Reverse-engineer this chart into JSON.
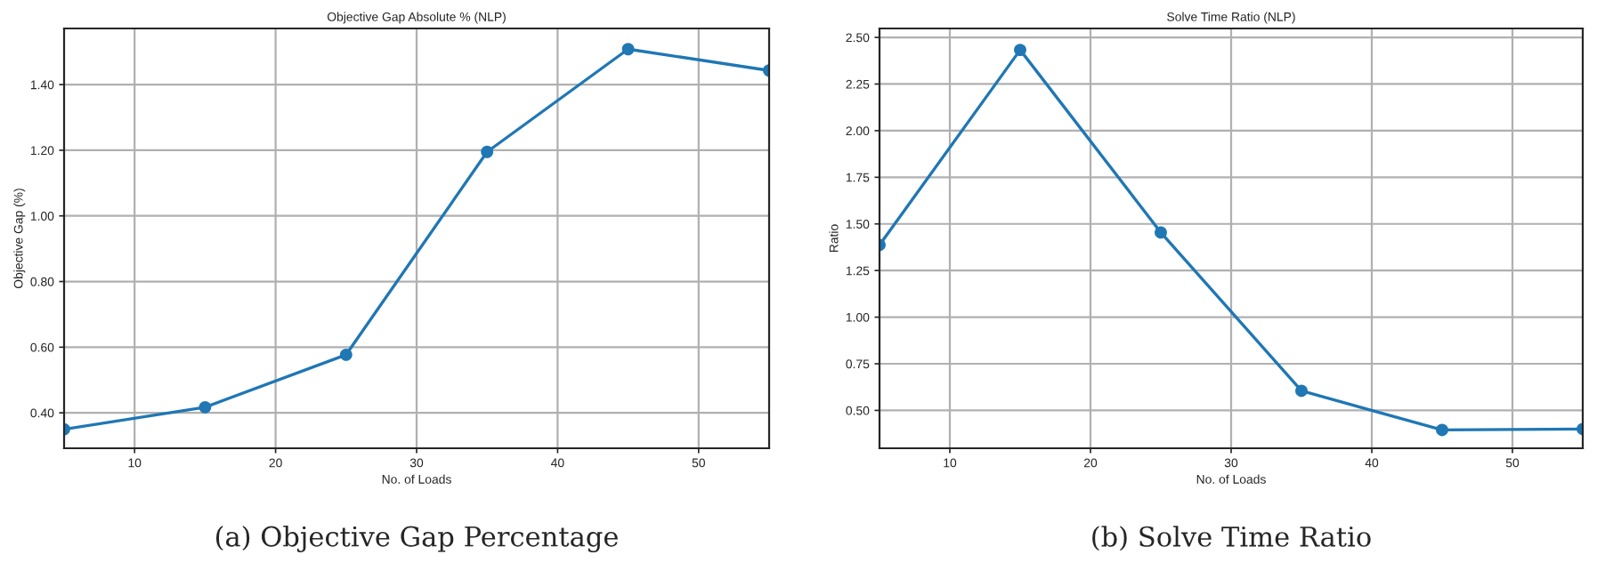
{
  "chart_data": [
    {
      "type": "line",
      "title": "Objective Gap Absolute % (NLP)",
      "xlabel": "No. of Loads",
      "ylabel": "Objective Gap (%)",
      "x": [
        5,
        15,
        25,
        35,
        45,
        55
      ],
      "series": [
        {
          "color": "#1f77b4",
          "values": [
            0.35,
            0.417,
            0.577,
            1.195,
            1.508,
            1.443
          ]
        }
      ],
      "xlim": [
        5,
        55
      ],
      "xticks": [
        10,
        20,
        30,
        40,
        50
      ],
      "ylim": [
        0.292,
        1.571
      ],
      "yticks": [
        {
          "value": 0.4,
          "label": "0.40"
        },
        {
          "value": 0.6,
          "label": "0.60"
        },
        {
          "value": 0.8,
          "label": "0.80"
        },
        {
          "value": 1.0,
          "label": "1.00"
        },
        {
          "value": 1.2,
          "label": "1.20"
        },
        {
          "value": 1.4,
          "label": "1.40"
        }
      ],
      "grid": true,
      "marker": "circle",
      "line_style": "solid",
      "annotations": [
        "(a) Objective Gap Percentage"
      ]
    },
    {
      "type": "line",
      "title": "Solve Time Ratio (NLP)",
      "xlabel": "No. of Loads",
      "ylabel": "Ratio",
      "x": [
        5,
        15,
        25,
        35,
        45,
        55
      ],
      "series": [
        {
          "color": "#1f77b4",
          "values": [
            1.387,
            2.433,
            1.454,
            0.605,
            0.395,
            0.4
          ]
        }
      ],
      "xlim": [
        5,
        55
      ],
      "xticks": [
        10,
        20,
        30,
        40,
        50
      ],
      "ylim": [
        0.297,
        2.548
      ],
      "yticks": [
        {
          "value": 0.5,
          "label": "0.50"
        },
        {
          "value": 0.75,
          "label": "0.75"
        },
        {
          "value": 1.0,
          "label": "1.00"
        },
        {
          "value": 1.25,
          "label": "1.25"
        },
        {
          "value": 1.5,
          "label": "1.50"
        },
        {
          "value": 1.75,
          "label": "1.75"
        },
        {
          "value": 2.0,
          "label": "2.00"
        },
        {
          "value": 2.25,
          "label": "2.25"
        },
        {
          "value": 2.5,
          "label": "2.50"
        }
      ],
      "grid": true,
      "marker": "circle",
      "line_style": "solid",
      "annotations": [
        "(b) Solve Time Ratio"
      ]
    }
  ]
}
